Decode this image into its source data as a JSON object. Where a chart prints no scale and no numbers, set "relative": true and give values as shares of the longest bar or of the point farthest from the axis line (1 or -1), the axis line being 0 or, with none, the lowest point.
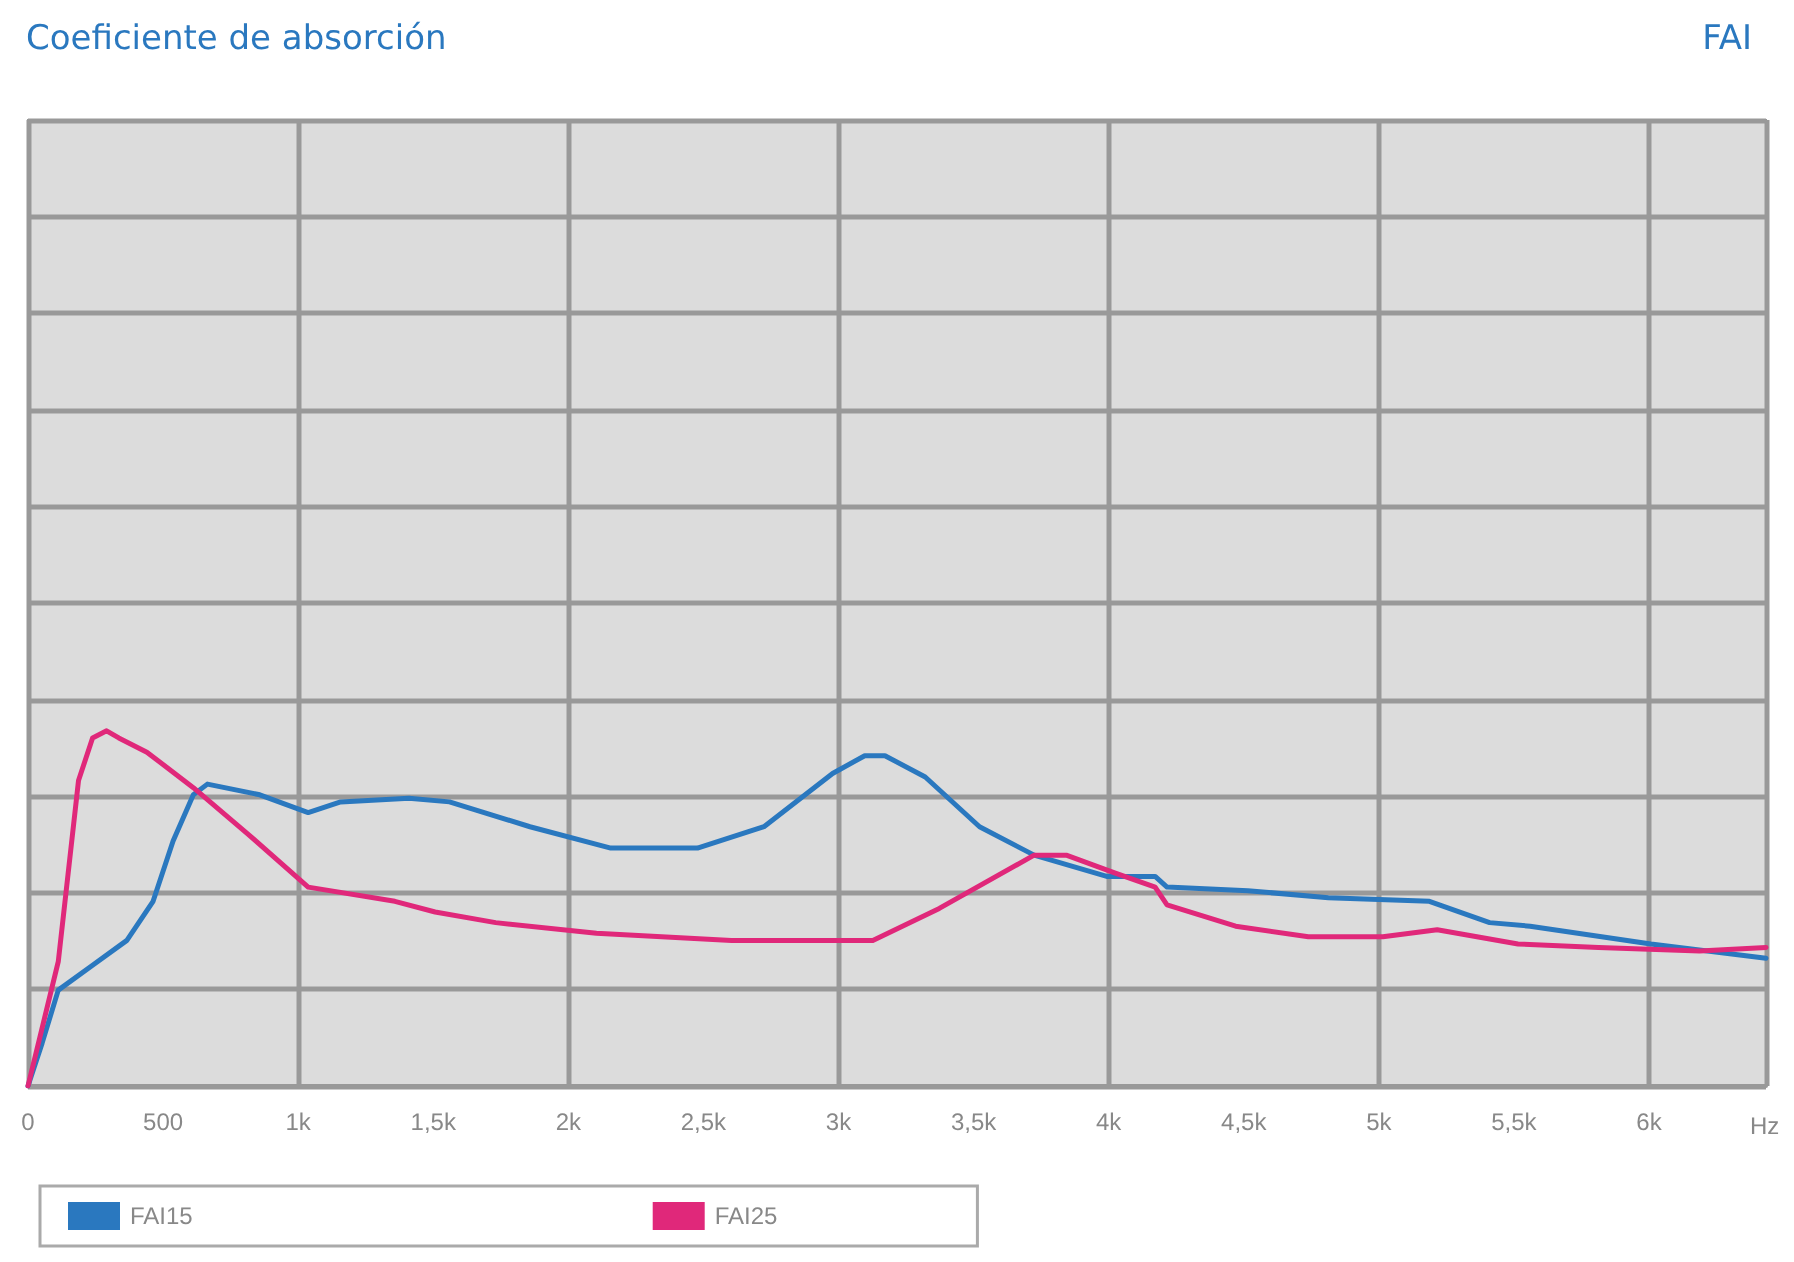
{
  "chart_data": {
    "type": "line",
    "title": "Coeficiente de absorción",
    "subtitle": "FAI",
    "xlabel": "Hz",
    "relative": true,
    "xlim": [
      0,
      6433
    ],
    "xticks": [
      0,
      500,
      {
        "value": 1000,
        "label": "1k"
      },
      {
        "value": 1500,
        "label": "1,5k"
      },
      {
        "value": 2000,
        "label": "2k"
      },
      {
        "value": 2500,
        "label": "2,5k"
      },
      {
        "value": 3000,
        "label": "3k"
      },
      {
        "value": 3500,
        "label": "3,5k"
      },
      {
        "value": 4000,
        "label": "4k"
      },
      {
        "value": 4500,
        "label": "4,5k"
      },
      {
        "value": 5000,
        "label": "5k"
      },
      {
        "value": 5500,
        "label": "5,5k"
      },
      {
        "value": 6000,
        "label": "6k"
      }
    ],
    "grid": true,
    "legend": "bottom",
    "marker": "none",
    "line_style": "solid",
    "series": [
      {
        "name": "FAI15",
        "color": "#2a78bf",
        "x": [
          0,
          52,
          112,
          239,
          366,
          463,
          537,
          612,
          664,
          858,
          1037,
          1157,
          1410,
          1560,
          1858,
          2157,
          2478,
          2724,
          2978,
          3097,
          3172,
          3321,
          3522,
          3724,
          3993,
          4172,
          4216,
          4515,
          4813,
          5187,
          5410,
          5560,
          6007,
          6433
        ],
        "values": [
          0,
          0.12,
          0.27,
          0.34,
          0.41,
          0.52,
          0.69,
          0.82,
          0.85,
          0.82,
          0.77,
          0.8,
          0.81,
          0.8,
          0.73,
          0.67,
          0.67,
          0.73,
          0.88,
          0.93,
          0.93,
          0.87,
          0.73,
          0.65,
          0.59,
          0.59,
          0.56,
          0.55,
          0.53,
          0.52,
          0.46,
          0.45,
          0.4,
          0.36
        ]
      },
      {
        "name": "FAI25",
        "color": "#e0287a",
        "x": [
          0,
          112,
          187,
          239,
          291,
          336,
          440,
          612,
          813,
          1037,
          1358,
          1507,
          1731,
          2104,
          2604,
          3075,
          3127,
          3373,
          3724,
          3843,
          4022,
          4172,
          4216,
          4470,
          4739,
          5015,
          5216,
          5515,
          5813,
          6187,
          6433
        ],
        "values": [
          0,
          0.35,
          0.86,
          0.98,
          1,
          0.98,
          0.94,
          0.84,
          0.71,
          0.56,
          0.52,
          0.49,
          0.46,
          0.43,
          0.41,
          0.41,
          0.41,
          0.5,
          0.65,
          0.65,
          0.6,
          0.56,
          0.51,
          0.45,
          0.42,
          0.42,
          0.44,
          0.4,
          0.39,
          0.38,
          0.39
        ]
      }
    ]
  }
}
